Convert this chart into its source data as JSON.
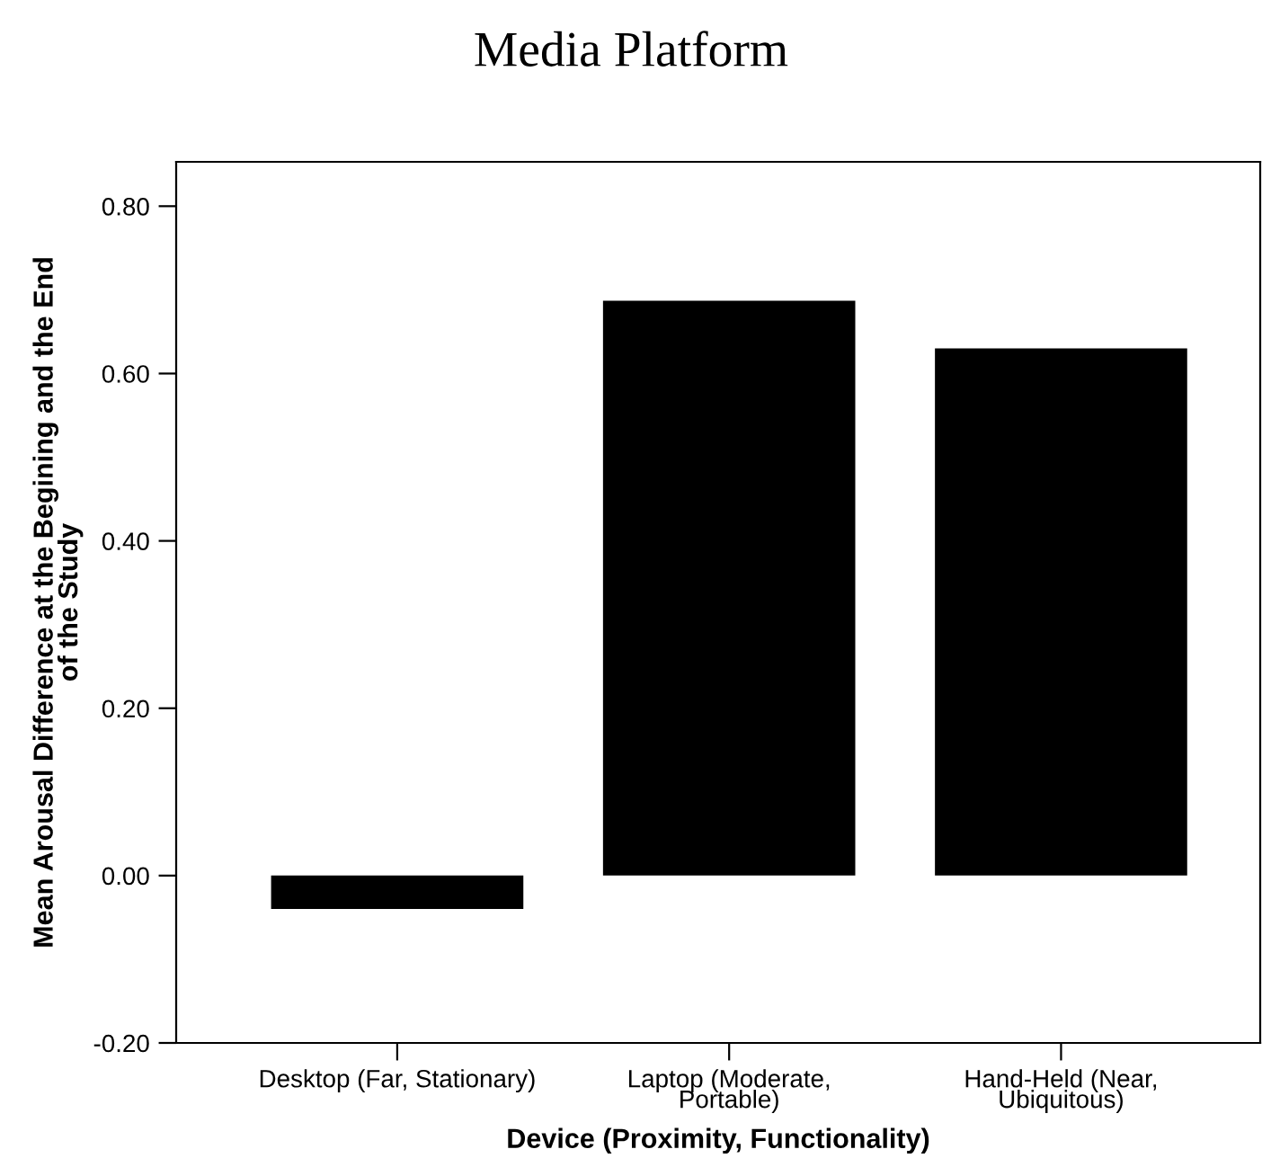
{
  "chart_data": {
    "type": "bar",
    "title": "Media Platform",
    "xlabel": "Device (Proximity, Functionality)",
    "ylabel": "Mean Arousal Difference at the Begining and the End\nof the Study",
    "categories": [
      "Desktop (Far, Stationary)",
      "Laptop (Moderate,\nPortable)",
      "Hand-Held (Near,\nUbiquitous)"
    ],
    "values": [
      -0.04,
      0.687,
      0.63
    ],
    "color": "#000000",
    "ylim": [
      -0.2,
      0.853
    ],
    "yticks": [
      {
        "value": -0.2,
        "label": "-0.20"
      },
      {
        "value": 0,
        "label": "0.00"
      },
      {
        "value": 0.2,
        "label": "0.20"
      },
      {
        "value": 0.4,
        "label": "0.40"
      },
      {
        "value": 0.6,
        "label": "0.60"
      },
      {
        "value": 0.8,
        "label": "0.80"
      }
    ],
    "grid": false
  }
}
